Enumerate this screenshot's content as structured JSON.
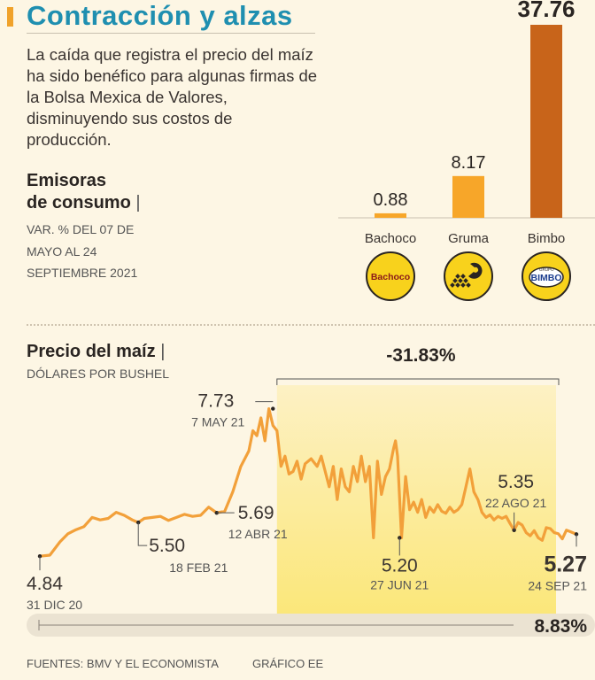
{
  "header": {
    "title": "Contracción y alzas",
    "intro": "La caída que registra el precio del maíz ha sido benéfico para algunas firmas de la Bolsa Mexica de Valores, disminuyendo sus costos de producción."
  },
  "emisoras": {
    "title_line1": "Emisoras",
    "title_line2": "de consumo",
    "separator": "|",
    "note": "VAR. % DEL 07 DE MAYO AL 24 SEPTIEMBRE 2021"
  },
  "maiz": {
    "title": "Precio del maíz",
    "separator": "|",
    "unit": "DÓLARES POR BUSHEL"
  },
  "footer": {
    "sources": "FUENTES: BMV Y EL ECONOMISTA",
    "credit": "GRÁFICO EE"
  },
  "colors": {
    "accent": "#1f8fb0",
    "bar_light": "#f7a629",
    "bar_dark": "#c8641a",
    "line": "#f2a03a",
    "highlight": "#fbe77a",
    "logo_yellow": "#f8d21c"
  },
  "chart_data": [
    {
      "type": "bar",
      "title": "Emisoras de consumo",
      "ylabel": "VAR. % DEL 07 DE MAYO AL 24 SEPTIEMBRE 2021",
      "categories": [
        "Bachoco",
        "Gruma",
        "Bimbo"
      ],
      "values": [
        0.88,
        8.17,
        37.76
      ],
      "value_labels": [
        "0.88",
        "8.17",
        "37.76"
      ],
      "ylim": [
        0,
        37.76
      ],
      "logos": [
        {
          "name": "bachoco-logo",
          "text": "Bachoco"
        },
        {
          "name": "gruma-logo",
          "text": ""
        },
        {
          "name": "bimbo-logo",
          "text": "BIMBO",
          "small": "GRUPO"
        }
      ]
    },
    {
      "type": "line",
      "title": "Precio del maíz",
      "ylabel": "DÓLARES POR BUSHEL",
      "ylim": [
        4.6,
        8.0
      ],
      "n_days": 267,
      "series": [
        {
          "name": "Precio del maíz",
          "x": [
            0,
            5,
            10,
            14,
            18,
            22,
            26,
            30,
            34,
            38,
            42,
            46,
            49,
            52,
            56,
            60,
            64,
            68,
            72,
            76,
            80,
            84,
            88,
            92,
            96,
            100,
            104,
            106,
            108,
            110,
            112,
            114,
            116,
            118,
            120,
            122,
            124,
            126,
            128,
            130,
            132,
            135,
            138,
            140,
            142,
            144,
            146,
            148,
            150,
            152,
            154,
            156,
            158,
            160,
            162,
            164,
            166,
            168,
            170,
            172,
            174,
            176,
            177,
            178,
            180,
            182,
            184,
            186,
            188,
            190,
            192,
            194,
            196,
            198,
            200,
            202,
            204,
            206,
            208,
            210,
            212,
            214,
            216,
            218,
            220,
            222,
            224,
            226,
            228,
            230,
            232,
            234,
            236,
            238,
            240,
            242,
            244,
            246,
            248,
            250,
            252,
            254,
            256,
            258,
            260,
            262,
            264,
            267
          ],
          "y": [
            4.84,
            4.86,
            5.12,
            5.28,
            5.36,
            5.42,
            5.6,
            5.55,
            5.58,
            5.7,
            5.64,
            5.55,
            5.5,
            5.58,
            5.6,
            5.62,
            5.54,
            5.6,
            5.66,
            5.62,
            5.64,
            5.8,
            5.69,
            5.72,
            6.1,
            6.6,
            6.9,
            7.3,
            7.2,
            7.55,
            7.1,
            7.73,
            7.4,
            7.3,
            6.6,
            6.8,
            6.45,
            6.5,
            6.7,
            6.35,
            6.65,
            6.75,
            6.6,
            6.8,
            6.5,
            6.2,
            6.6,
            5.95,
            6.55,
            6.2,
            6.1,
            6.6,
            6.3,
            6.8,
            6.3,
            6.6,
            5.2,
            6.7,
            6.05,
            6.4,
            6.55,
            6.95,
            7.1,
            6.8,
            5.2,
            6.4,
            5.75,
            5.9,
            5.7,
            5.95,
            5.6,
            5.8,
            5.7,
            5.85,
            5.72,
            5.68,
            5.8,
            5.7,
            5.75,
            5.85,
            6.2,
            6.55,
            6.1,
            5.95,
            5.7,
            5.6,
            5.65,
            5.55,
            5.62,
            5.58,
            5.62,
            5.48,
            5.35,
            5.5,
            5.45,
            5.3,
            5.24,
            5.34,
            5.2,
            5.15,
            5.4,
            5.38,
            5.3,
            5.28,
            5.18,
            5.35,
            5.32,
            5.27
          ]
        }
      ],
      "highlight_range": {
        "from": 118,
        "to": 267,
        "label": "-31.83%"
      },
      "annotations": [
        {
          "name": "annot-start",
          "value": "4.84",
          "date": "31 DIC 20",
          "x": 0,
          "y": 4.84,
          "align": "left",
          "bold": false
        },
        {
          "name": "annot-feb",
          "value": "5.50",
          "date": "18 FEB 21",
          "x": 49,
          "y": 5.5,
          "align": "center",
          "bold": false
        },
        {
          "name": "annot-abr",
          "value": "5.69",
          "date": "12 ABR 21",
          "x": 88,
          "y": 5.69,
          "align": "center",
          "bold": false
        },
        {
          "name": "annot-max",
          "value": "7.73",
          "date": "7 MAY 21",
          "x": 116,
          "y": 7.73,
          "align": "right",
          "bold": false
        },
        {
          "name": "annot-jun",
          "value": "5.20",
          "date": "27 JUN 21",
          "x": 179,
          "y": 5.2,
          "align": "center",
          "bold": false
        },
        {
          "name": "annot-ago",
          "value": "5.35",
          "date": "22 AGO 21",
          "x": 236,
          "y": 5.35,
          "align": "center",
          "bold": false
        },
        {
          "name": "annot-end",
          "value": "5.27",
          "date": "24 SEP 21",
          "x": 267,
          "y": 5.27,
          "align": "right",
          "bold": true
        }
      ],
      "total_change": "8.83%"
    }
  ]
}
